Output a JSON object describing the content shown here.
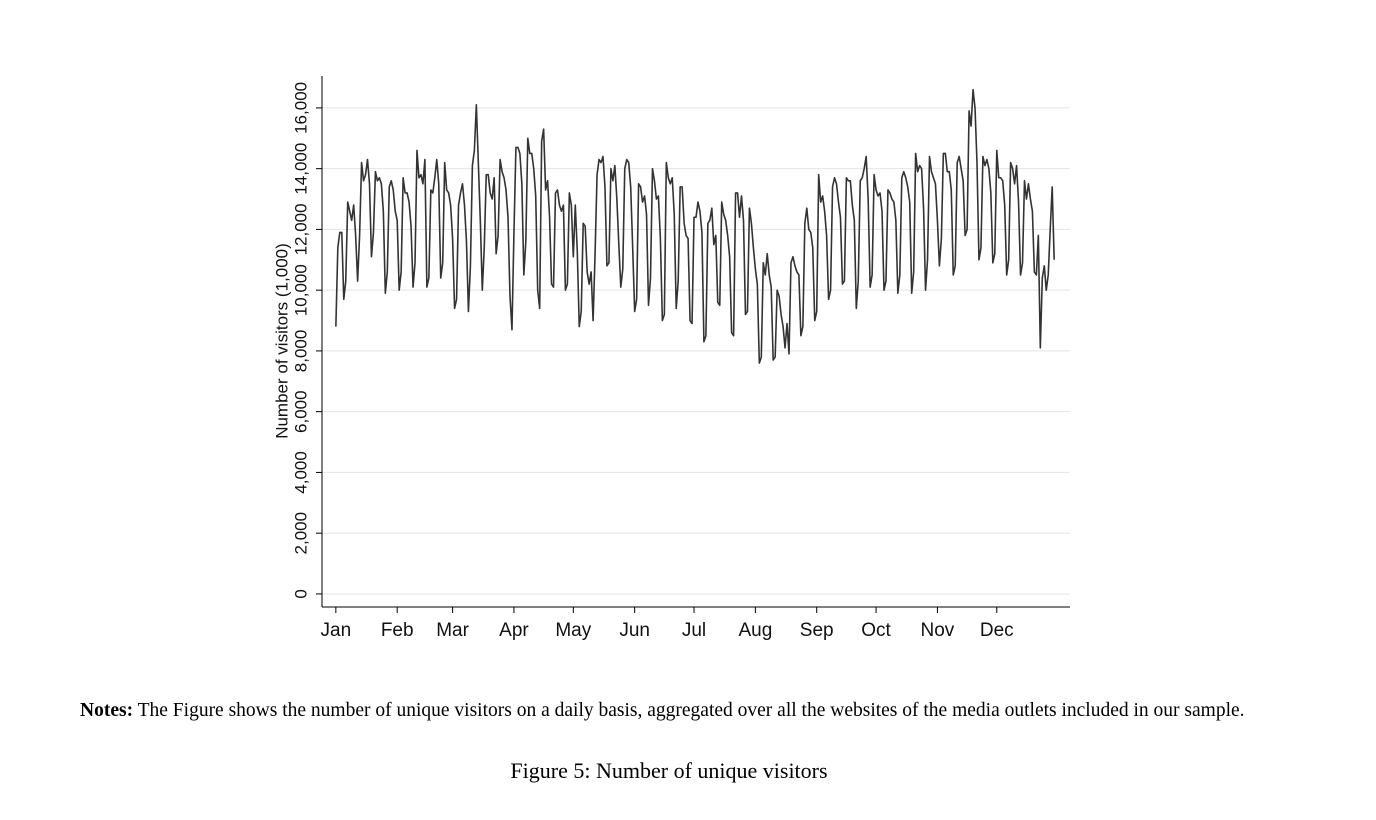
{
  "chart_data": {
    "type": "line",
    "ylabel": "Number of visitors (1,000)",
    "x": [
      1,
      2,
      3,
      4,
      5,
      6,
      7,
      8,
      9,
      10,
      11,
      12,
      13,
      14,
      15,
      16,
      17,
      18,
      19,
      20,
      21,
      22,
      23,
      24,
      25,
      26,
      27,
      28,
      29,
      30,
      31,
      32,
      33,
      34,
      35,
      36,
      37,
      38,
      39,
      40,
      41,
      42,
      43,
      44,
      45,
      46,
      47,
      48,
      49,
      50,
      51,
      52,
      53,
      54,
      55,
      56,
      57,
      58,
      59,
      60,
      61,
      62,
      63,
      64,
      65,
      66,
      67,
      68,
      69,
      70,
      71,
      72,
      73,
      74,
      75,
      76,
      77,
      78,
      79,
      80,
      81,
      82,
      83,
      84,
      85,
      86,
      87,
      88,
      89,
      90,
      91,
      92,
      93,
      94,
      95,
      96,
      97,
      98,
      99,
      100,
      101,
      102,
      103,
      104,
      105,
      106,
      107,
      108,
      109,
      110,
      111,
      112,
      113,
      114,
      115,
      116,
      117,
      118,
      119,
      120,
      121,
      122,
      123,
      124,
      125,
      126,
      127,
      128,
      129,
      130,
      131,
      132,
      133,
      134,
      135,
      136,
      137,
      138,
      139,
      140,
      141,
      142,
      143,
      144,
      145,
      146,
      147,
      148,
      149,
      150,
      151,
      152,
      153,
      154,
      155,
      156,
      157,
      158,
      159,
      160,
      161,
      162,
      163,
      164,
      165,
      166,
      167,
      168,
      169,
      170,
      171,
      172,
      173,
      174,
      175,
      176,
      177,
      178,
      179,
      180,
      181,
      182,
      183,
      184,
      185,
      186,
      187,
      188,
      189,
      190,
      191,
      192,
      193,
      194,
      195,
      196,
      197,
      198,
      199,
      200,
      201,
      202,
      203,
      204,
      205,
      206,
      207,
      208,
      209,
      210,
      211,
      212,
      213,
      214,
      215,
      216,
      217,
      218,
      219,
      220,
      221,
      222,
      223,
      224,
      225,
      226,
      227,
      228,
      229,
      230,
      231,
      232,
      233,
      234,
      235,
      236,
      237,
      238,
      239,
      240,
      241,
      242,
      243,
      244,
      245,
      246,
      247,
      248,
      249,
      250,
      251,
      252,
      253,
      254,
      255,
      256,
      257,
      258,
      259,
      260,
      261,
      262,
      263,
      264,
      265,
      266,
      267,
      268,
      269,
      270,
      271,
      272,
      273,
      274,
      275,
      276,
      277,
      278,
      279,
      280,
      281,
      282,
      283,
      284,
      285,
      286,
      287,
      288,
      289,
      290,
      291,
      292,
      293,
      294,
      295,
      296,
      297,
      298,
      299,
      300,
      301,
      302,
      303,
      304,
      305,
      306,
      307,
      308,
      309,
      310,
      311,
      312,
      313,
      314,
      315,
      316,
      317,
      318,
      319,
      320,
      321,
      322,
      323,
      324,
      325,
      326,
      327,
      328,
      329,
      330,
      331,
      332,
      333,
      334,
      335,
      336,
      337,
      338,
      339,
      340,
      341,
      342,
      343,
      344,
      345,
      346,
      347,
      348,
      349,
      350,
      351,
      352,
      353,
      354,
      355,
      356,
      357,
      358,
      359,
      360,
      361,
      362,
      363,
      364
    ],
    "values": [
      8800,
      11400,
      11900,
      11900,
      9700,
      10300,
      12900,
      12600,
      12300,
      12800,
      11800,
      10300,
      11800,
      14200,
      13600,
      13800,
      14300,
      13500,
      11100,
      11900,
      13900,
      13600,
      13700,
      13500,
      12600,
      9900,
      10600,
      13400,
      13600,
      13300,
      12600,
      12300,
      10000,
      10600,
      13700,
      13200,
      13200,
      12900,
      12100,
      10100,
      10900,
      14600,
      13700,
      13800,
      13500,
      14300,
      10100,
      10400,
      13300,
      13200,
      13700,
      14300,
      13500,
      10400,
      10900,
      14200,
      13300,
      13200,
      12800,
      11700,
      9400,
      9700,
      12800,
      13200,
      13500,
      12800,
      11600,
      9300,
      10800,
      14100,
      14600,
      16100,
      14200,
      12300,
      10000,
      11400,
      13800,
      13800,
      13200,
      13000,
      13700,
      11200,
      11800,
      14300,
      13900,
      13700,
      13300,
      12400,
      9800,
      8700,
      11900,
      14700,
      14700,
      14500,
      13500,
      10500,
      11600,
      15000,
      14500,
      14500,
      14000,
      13100,
      10000,
      9400,
      14900,
      15300,
      13300,
      13600,
      12400,
      10200,
      10100,
      13200,
      13300,
      12800,
      12600,
      12800,
      10000,
      10200,
      13200,
      12800,
      11100,
      12800,
      11300,
      8800,
      9300,
      12200,
      12100,
      10600,
      10200,
      10600,
      9000,
      11200,
      13800,
      14300,
      14200,
      14400,
      13400,
      10800,
      10900,
      14000,
      13600,
      14100,
      13000,
      11500,
      10100,
      10700,
      14000,
      14300,
      14200,
      13400,
      11400,
      9300,
      9700,
      13500,
      13400,
      12900,
      13100,
      12500,
      9500,
      10400,
      14000,
      13600,
      13000,
      13100,
      11700,
      9000,
      9200,
      14200,
      13700,
      13500,
      13700,
      12500,
      9400,
      10300,
      13400,
      13400,
      12200,
      11800,
      11700,
      9000,
      8900,
      12400,
      12400,
      12900,
      12600,
      11900,
      8300,
      8500,
      12200,
      12300,
      12700,
      11500,
      11800,
      9600,
      9500,
      12900,
      12500,
      12300,
      11800,
      11100,
      8600,
      8500,
      13200,
      13200,
      12400,
      13100,
      12300,
      9200,
      9300,
      12700,
      12200,
      11400,
      10700,
      10200,
      7600,
      7800,
      10900,
      10500,
      11200,
      10500,
      10100,
      7700,
      7800,
      10000,
      9800,
      9200,
      8800,
      8100,
      8900,
      7900,
      10900,
      11100,
      10800,
      10600,
      10500,
      8500,
      8800,
      12200,
      12700,
      12000,
      11900,
      11400,
      9000,
      9300,
      13800,
      12900,
      13100,
      12600,
      11800,
      9700,
      10000,
      13400,
      13700,
      13500,
      12900,
      12400,
      10200,
      10300,
      13700,
      13600,
      13600,
      12800,
      12300,
      9400,
      10300,
      13600,
      13700,
      14000,
      14400,
      13000,
      10100,
      10500,
      13800,
      13300,
      13100,
      13200,
      12600,
      10000,
      10300,
      13300,
      13200,
      13000,
      12900,
      12300,
      9900,
      10500,
      13700,
      13900,
      13700,
      13400,
      12900,
      9900,
      10600,
      14500,
      13900,
      14100,
      14000,
      12700,
      10000,
      11000,
      14400,
      13900,
      13700,
      13500,
      12300,
      10800,
      11700,
      14500,
      14500,
      13900,
      13900,
      13300,
      10500,
      10800,
      14200,
      14400,
      14000,
      13600,
      11800,
      12000,
      15900,
      15400,
      16600,
      16000,
      14200,
      11000,
      11400,
      14400,
      14100,
      14300,
      14000,
      13200,
      10900,
      11200,
      14600,
      13700,
      13700,
      13600,
      12800,
      10500,
      11000,
      14200,
      14000,
      13500,
      14100,
      12900,
      10500,
      10900,
      13600,
      13000,
      13500,
      13000,
      12600,
      10600,
      10500,
      11800,
      8100,
      10400,
      10800,
      10000,
      10500,
      12000,
      13400,
      11000
    ],
    "color": "#333333",
    "xlim": [
      -6,
      372
    ],
    "xticks": [
      {
        "value": 1,
        "label": "Jan"
      },
      {
        "value": 32,
        "label": "Feb"
      },
      {
        "value": 60,
        "label": "Mar"
      },
      {
        "value": 91,
        "label": "Apr"
      },
      {
        "value": 121,
        "label": "May"
      },
      {
        "value": 152,
        "label": "Jun"
      },
      {
        "value": 182,
        "label": "Jul"
      },
      {
        "value": 213,
        "label": "Aug"
      },
      {
        "value": 244,
        "label": "Sep"
      },
      {
        "value": 274,
        "label": "Oct"
      },
      {
        "value": 305,
        "label": "Nov"
      },
      {
        "value": 335,
        "label": "Dec"
      }
    ],
    "ylim": [
      -430,
      17050
    ],
    "yticks": [
      0,
      {
        "value": 2000,
        "label": "2,000"
      },
      {
        "value": 4000,
        "label": "4,000"
      },
      {
        "value": 6000,
        "label": "6,000"
      },
      {
        "value": 8000,
        "label": "8,000"
      },
      {
        "value": 10000,
        "label": "10,000"
      },
      {
        "value": 12000,
        "label": "12,000"
      },
      {
        "value": 14000,
        "label": "14,000"
      },
      {
        "value": 16000,
        "label": "16,000"
      }
    ],
    "grid": true
  },
  "notes": {
    "label": "Notes:",
    "text": "The Figure shows the number of unique visitors on a daily basis, aggregated over all the websites of the media outlets included in our sample."
  },
  "caption": "Figure 5: Number of unique visitors"
}
